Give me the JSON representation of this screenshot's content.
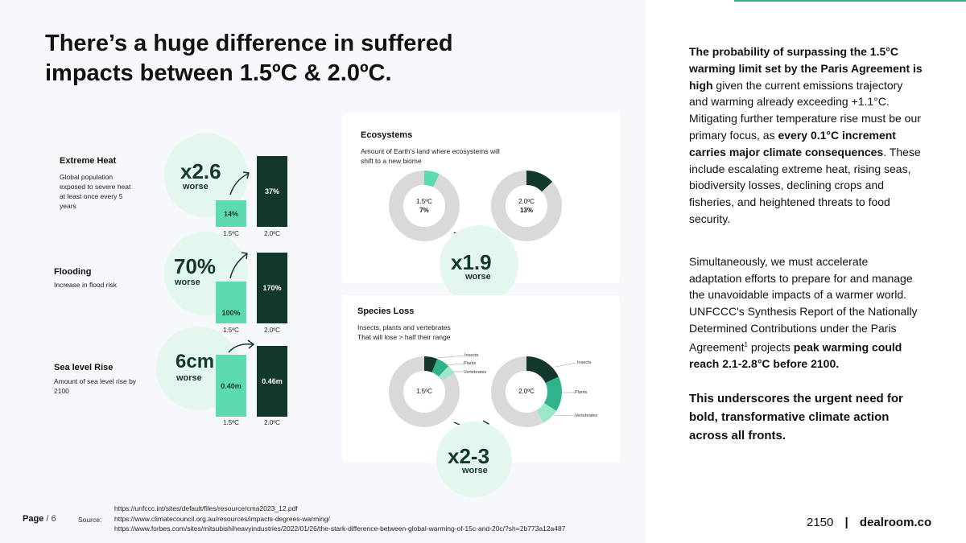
{
  "title_line1": "There’s a huge difference in suffered",
  "title_line2": "impacts between 1.5ºC & 2.0ºC.",
  "impacts": {
    "heat": {
      "title": "Extreme Heat",
      "desc": [
        "Global population",
        "exposed to severe heat",
        "at least once every 5",
        "years"
      ],
      "multiplier": "x2.6",
      "worse": "worse",
      "bar_low_label": "14%",
      "bar_high_label": "37%",
      "low_pct": 14,
      "high_pct": 37
    },
    "flood": {
      "title": "Flooding",
      "desc": [
        "Increase in flood risk"
      ],
      "multiplier": "70%",
      "worse": "worse",
      "bar_low_label": "100%",
      "bar_high_label": "170%",
      "low_pct": 100,
      "high_pct": 170
    },
    "sea": {
      "title": "Sea level Rise",
      "desc": [
        "Amount of sea level rise by",
        "2100"
      ],
      "multiplier": "6cm",
      "worse": "worse",
      "bar_low_label": "0.40m",
      "bar_high_label": "0.46m",
      "low_m": 0.4,
      "high_m": 0.46
    },
    "x_low": "1.5ºC",
    "x_high": "2.0ºC"
  },
  "ecosystems": {
    "title": "Ecosystems",
    "desc": [
      "Amount of Earth’s land where ecosystems will",
      "shift to a new biome"
    ],
    "donut_low": {
      "temp": "1.5ºC",
      "value": "7%",
      "pct": 7
    },
    "donut_high": {
      "temp": "2.0ºC",
      "value": "13%",
      "pct": 13
    },
    "multiplier": "x1.9",
    "worse": "worse"
  },
  "species": {
    "title": "Species Loss",
    "desc": [
      "Insects, plants and vertebrates",
      "That will lose > half their range"
    ],
    "donut_low": {
      "temp": "1.5ºC",
      "segments": [
        6,
        6,
        4
      ]
    },
    "donut_high": {
      "temp": "2.0ºC",
      "segments": [
        18,
        16,
        8
      ]
    },
    "labels": [
      "Insects",
      "Plants",
      "Vertebrates"
    ],
    "multiplier": "x2-3",
    "worse": "worse"
  },
  "body_p1": {
    "b1": "The probability of surpassing the 1.5°C warming limit set by the Paris Agreement is high",
    "t1": " given the current emissions trajectory and warming already exceeding +1.1°C. Mitigating further temperature rise must be our primary focus, as ",
    "b2": "every 0.1°C increment carries major climate consequences",
    "t2": ". These include escalating extreme heat, rising seas, biodiversity losses, declining crops and fisheries, and heightened threats to food security."
  },
  "body_p2": {
    "t1": "Simultaneously, we must accelerate adaptation efforts to prepare for and manage the unavoidable impacts of a warmer world. UNFCCC's Synthesis Report of the Nationally Determined Contributions under the Paris Agreement",
    "sup": "1",
    "t2": " projects ",
    "b1": "peak warming could reach 2.1-2.8°C before 2100."
  },
  "closing": "This underscores the urgent need for bold, transformative climate action across all fronts.",
  "footer": {
    "page_label": "Page",
    "page_num": "/ 6",
    "source_label": "Source:",
    "sources": [
      "https://unfccc.int/sites/default/files/resource/cma2023_12.pdf",
      "https://www.climatecouncil.org.au/resources/impacts-degrees-warming/",
      "https://www.forbes.com/sites/mitsubishiheavyindustries/2022/01/26/the-stark-difference-between-global-warming-of-15c-and-20c/?sh=2b773a12a487"
    ],
    "brand_left": "2150",
    "brand_sep": "|",
    "brand_right": "dealroom.co"
  },
  "colors": {
    "dark": "#12382d",
    "mid": "#2fb38a",
    "light": "#5cdcae",
    "pale": "#9be8c8",
    "grey": "#d9d9d9"
  }
}
